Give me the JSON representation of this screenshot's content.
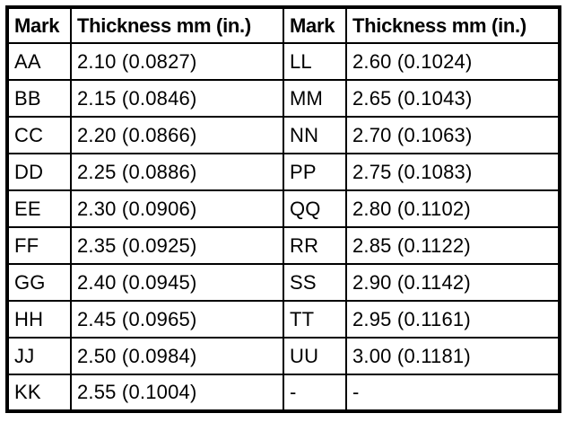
{
  "table": {
    "title_semantic": "shim-thickness-lookup-table",
    "headers": [
      "Mark",
      "Thickness mm (in.)",
      "Mark",
      "Thickness mm (in.)"
    ],
    "rows": [
      [
        "AA",
        "2.10 (0.0827)",
        "LL",
        "2.60 (0.1024)"
      ],
      [
        "BB",
        "2.15 (0.0846)",
        "MM",
        "2.65 (0.1043)"
      ],
      [
        "CC",
        "2.20 (0.0866)",
        "NN",
        "2.70 (0.1063)"
      ],
      [
        "DD",
        "2.25 (0.0886)",
        "PP",
        "2.75 (0.1083)"
      ],
      [
        "EE",
        "2.30 (0.0906)",
        "QQ",
        "2.80 (0.1102)"
      ],
      [
        "FF",
        "2.35 (0.0925)",
        "RR",
        "2.85 (0.1122)"
      ],
      [
        "GG",
        "2.40 (0.0945)",
        "SS",
        "2.90 (0.1142)"
      ],
      [
        "HH",
        "2.45 (0.0965)",
        "TT",
        "2.95 (0.1161)"
      ],
      [
        "JJ",
        "2.50 (0.0984)",
        "UU",
        "3.00 (0.1181)"
      ],
      [
        "KK",
        "2.55 (0.1004)",
        "-",
        "-"
      ]
    ],
    "colors": {
      "border": "#000000",
      "text": "#000000",
      "background": "#ffffff"
    }
  }
}
